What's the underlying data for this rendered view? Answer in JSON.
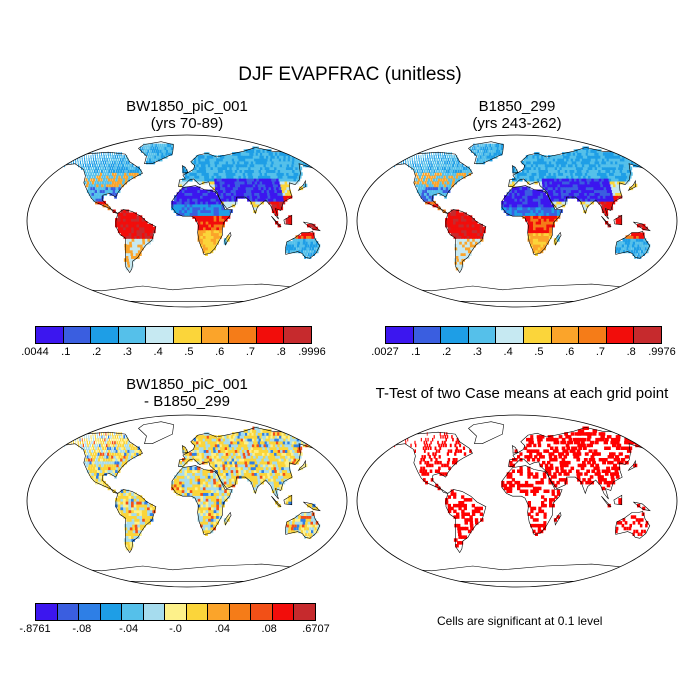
{
  "title": "DJF EVAPFRAC (unitless)",
  "panels": {
    "p1": {
      "title_line1": "BW1850_piC_001",
      "title_line2": "(yrs 70-89)"
    },
    "p2": {
      "title_line1": "B1850_299",
      "title_line2": "(yrs 243-262)"
    },
    "p3": {
      "title_line1": "BW1850_piC_001",
      "title_line2": "- B1850_299"
    },
    "p4": {
      "title_line1": "T-Test of two Case means at each grid point"
    }
  },
  "colorbars": {
    "cb1": {
      "colors": [
        "#3c16ef",
        "#3a5ee0",
        "#1e9ee6",
        "#55c0ea",
        "#c6e9f2",
        "#fbd53a",
        "#fba42a",
        "#f57c18",
        "#f20d0b",
        "#c62a2d"
      ],
      "labels": [
        ".0044",
        ".1",
        ".2",
        ".3",
        ".4",
        ".5",
        ".6",
        ".7",
        ".8",
        ".9996"
      ]
    },
    "cb2": {
      "colors": [
        "#3c16ef",
        "#3a5ee0",
        "#1e9ee6",
        "#55c0ea",
        "#c6e9f2",
        "#fbd53a",
        "#fba42a",
        "#f57c18",
        "#f20d0b",
        "#c62a2d"
      ],
      "labels": [
        ".0027",
        ".1",
        ".2",
        ".3",
        ".4",
        ".5",
        ".6",
        ".7",
        ".8",
        ".9976"
      ]
    },
    "cb3": {
      "colors": [
        "#3c16ef",
        "#3a5ee0",
        "#2e7fe6",
        "#1e9ee6",
        "#55c0ea",
        "#a6dcee",
        "#fdf18a",
        "#fbd53a",
        "#fba42a",
        "#f57c18",
        "#f25017",
        "#f20d0b",
        "#c62a2d"
      ],
      "labels": [
        "-.8761",
        "-.08",
        "-.04",
        "-.0",
        ".04",
        ".08",
        ".6707"
      ]
    }
  },
  "note": "Cells are significant at 0.1 level",
  "map_colors": {
    "ocean": "#ffffff",
    "outline": "#000000",
    "dry_blue": "#3c16ef",
    "mid_blue": "#2e7fe6",
    "light_blue": "#55c0ea",
    "orange": "#fba42a",
    "red": "#f20d0b",
    "diff_yellow": "#fbe14a",
    "diff_light": "#a6dcee",
    "sig_red": "#ff0000"
  }
}
